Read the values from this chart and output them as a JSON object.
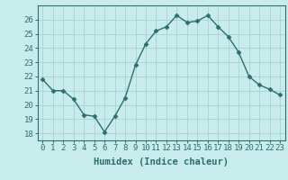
{
  "x": [
    0,
    1,
    2,
    3,
    4,
    5,
    6,
    7,
    8,
    9,
    10,
    11,
    12,
    13,
    14,
    15,
    16,
    17,
    18,
    19,
    20,
    21,
    22,
    23
  ],
  "y": [
    21.8,
    21.0,
    21.0,
    20.4,
    19.3,
    19.2,
    18.1,
    19.2,
    20.5,
    22.8,
    24.3,
    25.2,
    25.5,
    26.3,
    25.8,
    25.9,
    26.3,
    25.5,
    24.8,
    23.7,
    22.0,
    21.4,
    21.1,
    20.7
  ],
  "line_color": "#2d6e6e",
  "marker": "D",
  "marker_size": 2.5,
  "bg_color": "#c8ecec",
  "grid_color": "#aed4d4",
  "xlabel": "Humidex (Indice chaleur)",
  "ylim": [
    17.5,
    27.0
  ],
  "xlim": [
    -0.5,
    23.5
  ],
  "yticks": [
    18,
    19,
    20,
    21,
    22,
    23,
    24,
    25,
    26
  ],
  "xticks": [
    0,
    1,
    2,
    3,
    4,
    5,
    6,
    7,
    8,
    9,
    10,
    11,
    12,
    13,
    14,
    15,
    16,
    17,
    18,
    19,
    20,
    21,
    22,
    23
  ],
  "tick_color": "#2d6e6e",
  "label_fontsize": 7.5,
  "tick_fontsize": 6.5
}
